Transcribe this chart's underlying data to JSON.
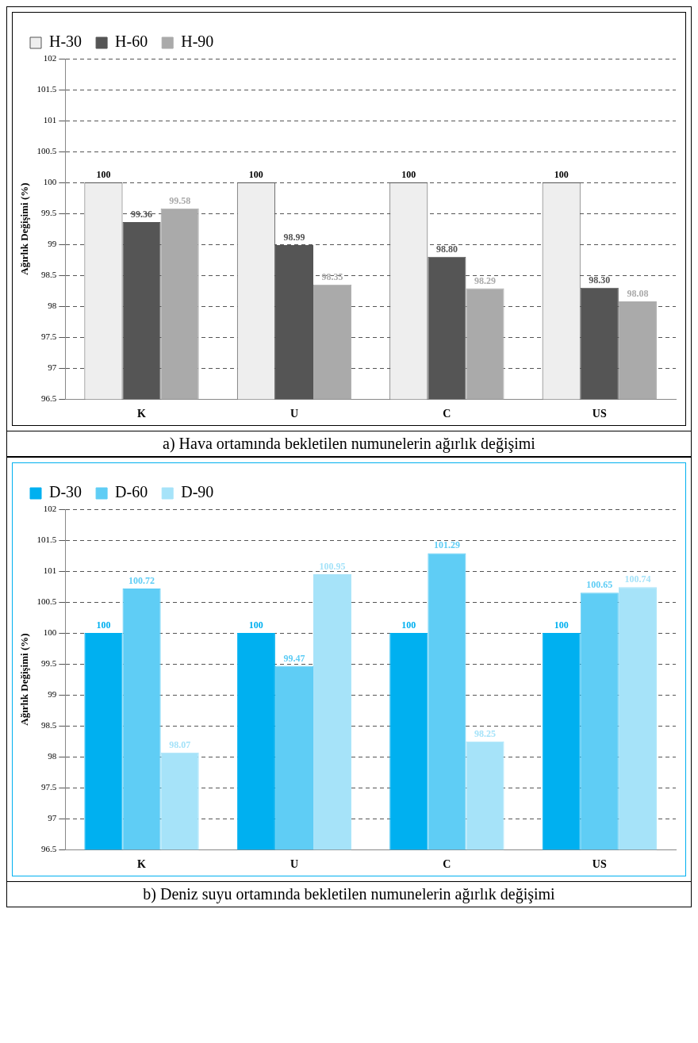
{
  "chart_data": [
    {
      "type": "bar",
      "ylabel": "Ağırlık Değişimi (%)",
      "categories": [
        "K",
        "U",
        "C",
        "US"
      ],
      "series": [
        {
          "name": "H-30",
          "color": "#eeeeee",
          "values": [
            100,
            100,
            100,
            100
          ],
          "value_labels": [
            "100",
            "100",
            "100",
            "100"
          ]
        },
        {
          "name": "H-60",
          "color": "#555555",
          "values": [
            99.36,
            98.99,
            98.8,
            98.3
          ],
          "value_labels": [
            "99.36",
            "98.99",
            "98.80",
            "98.30"
          ]
        },
        {
          "name": "H-90",
          "color": "#aaaaaa",
          "values": [
            99.58,
            98.35,
            98.29,
            98.08
          ],
          "value_labels": [
            "99.58",
            "98.35",
            "98.29",
            "98.08"
          ]
        }
      ],
      "ylim": [
        96.5,
        102
      ],
      "yticks": [
        96.5,
        97,
        97.5,
        98,
        98.5,
        99,
        99.5,
        100,
        100.5,
        101,
        101.5,
        102
      ],
      "grid": "y",
      "legend": "top left",
      "annotations": [
        "a) Hava ortamında bekletilen numunelerin ağırlık değişimi"
      ]
    },
    {
      "type": "bar",
      "ylabel": "Ağırlık Değişimi (%)",
      "categories": [
        "K",
        "U",
        "C",
        "US"
      ],
      "series": [
        {
          "name": "D-30",
          "color": "#00b0f0",
          "values": [
            100,
            100,
            100,
            100
          ],
          "value_labels": [
            "100",
            "100",
            "100",
            "100"
          ]
        },
        {
          "name": "D-60",
          "color": "#5fcdf5",
          "values": [
            100.72,
            99.47,
            101.29,
            100.65
          ],
          "value_labels": [
            "100.72",
            "99.47",
            "101.29",
            "100.65"
          ]
        },
        {
          "name": "D-90",
          "color": "#a6e3f9",
          "values": [
            98.07,
            100.95,
            98.25,
            100.74
          ],
          "value_labels": [
            "98.07",
            "100.95",
            "98.25",
            "100.74"
          ]
        }
      ],
      "ylim": [
        96.5,
        102
      ],
      "yticks": [
        96.5,
        97,
        97.5,
        98,
        98.5,
        99,
        99.5,
        100,
        100.5,
        101,
        101.5,
        102
      ],
      "grid": "y",
      "legend": "top left",
      "annotations": [
        "b) Deniz suyu ortamında bekletilen numunelerin ağırlık değişimi"
      ]
    }
  ]
}
